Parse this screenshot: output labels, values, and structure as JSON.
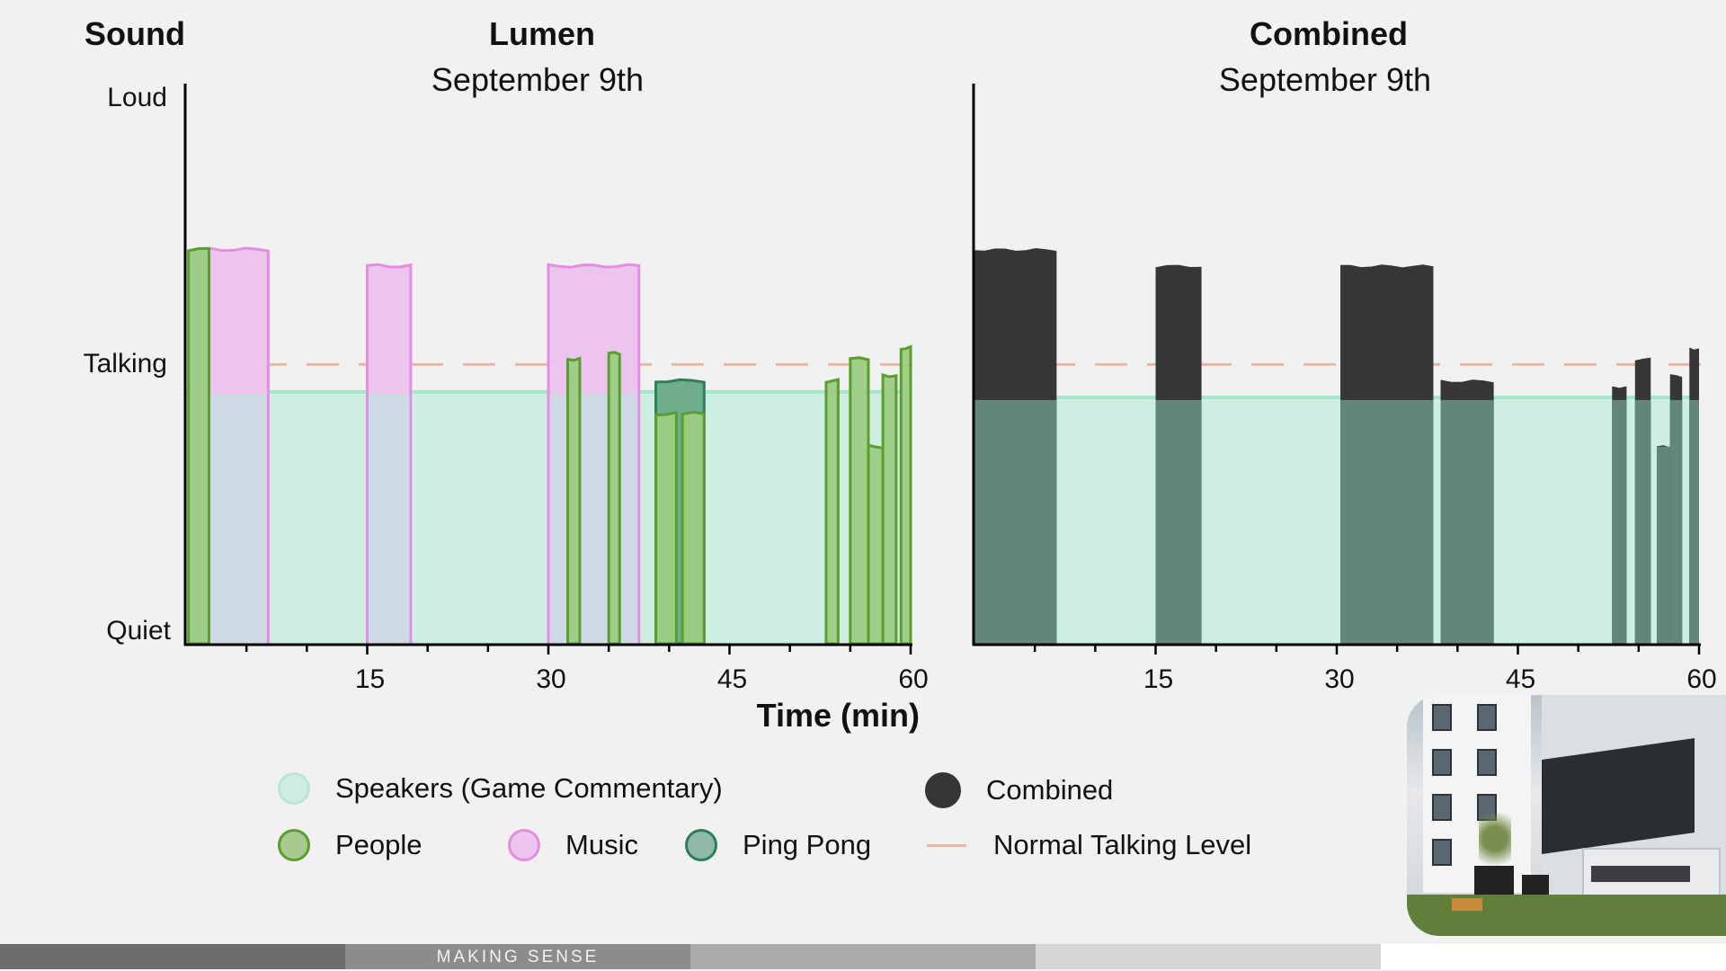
{
  "y_axis_title": "Sound",
  "y_labels": {
    "loud": "Loud",
    "talking": "Talking",
    "quiet": "Quiet"
  },
  "x_axis_title": "Time (min)",
  "panels": [
    {
      "title": "Lumen",
      "subtitle": "September 9th"
    },
    {
      "title": "Combined",
      "subtitle": "September 9th"
    }
  ],
  "legend": {
    "speakers": "Speakers (Game Commentary)",
    "combined": "Combined",
    "people": "People",
    "music": "Music",
    "ping_pong": "Ping Pong",
    "normal_talking": "Normal Talking Level"
  },
  "colors": {
    "speakers_fill": "#cfeee2",
    "speakers_line": "#a6e6cc",
    "people_fill": "#9ccc84",
    "people_line": "#5a9e2f",
    "music_fill": "#ecc4ee",
    "music_line": "#e38ee0",
    "overlap_fill": "#cfd9e6",
    "ping_fill": "#6fae8c",
    "ping_line": "#2e7d5b",
    "combined_dark": "#363636",
    "combined_under": "#62867a",
    "talking_line": "#e7b7a5"
  },
  "footer_label": "MAKING SENSE",
  "chart_data": [
    {
      "type": "area",
      "title": "Lumen",
      "subtitle": "September 9th",
      "xlabel": "Time (min)",
      "ylabel": "Sound",
      "xlim": [
        0,
        60
      ],
      "ylim": [
        0,
        100
      ],
      "x_ticks": [
        15,
        30,
        45,
        60
      ],
      "y_tick_labels": [
        {
          "label": "Quiet",
          "y": 0
        },
        {
          "label": "Talking",
          "y": 51
        },
        {
          "label": "Loud",
          "y": 100
        }
      ],
      "normal_talking_level": 51,
      "series": [
        {
          "name": "Speakers (Game Commentary)",
          "segments": [
            {
              "start": 0,
              "end": 60,
              "level": 46
            }
          ]
        },
        {
          "name": "Music",
          "segments": [
            {
              "start": 0.2,
              "end": 6.8,
              "level": 72
            },
            {
              "start": 15.0,
              "end": 18.6,
              "level": 69
            },
            {
              "start": 30.0,
              "end": 37.5,
              "level": 69
            }
          ]
        },
        {
          "name": "People",
          "segments": [
            {
              "start": 0.2,
              "end": 1.9,
              "level": 72
            },
            {
              "start": 31.6,
              "end": 32.6,
              "level": 52
            },
            {
              "start": 35.0,
              "end": 35.9,
              "level": 53
            },
            {
              "start": 38.9,
              "end": 40.6,
              "level": 42
            },
            {
              "start": 41.1,
              "end": 42.9,
              "level": 42
            },
            {
              "start": 53.0,
              "end": 54.0,
              "level": 48
            },
            {
              "start": 55.0,
              "end": 56.5,
              "level": 52
            },
            {
              "start": 56.5,
              "end": 57.7,
              "level": 36
            },
            {
              "start": 57.7,
              "end": 58.8,
              "level": 49
            },
            {
              "start": 59.2,
              "end": 60.0,
              "level": 54
            }
          ]
        },
        {
          "name": "Ping Pong",
          "segments": [
            {
              "start": 38.9,
              "end": 42.9,
              "level": 48
            }
          ]
        }
      ]
    },
    {
      "type": "area",
      "title": "Combined",
      "subtitle": "September 9th",
      "xlim": [
        0,
        60
      ],
      "ylim": [
        0,
        100
      ],
      "x_ticks": [
        15,
        30,
        45,
        60
      ],
      "normal_talking_level": 51,
      "series": [
        {
          "name": "Speakers (Game Commentary)",
          "segments": [
            {
              "start": 0,
              "end": 60,
              "level": 45
            }
          ]
        },
        {
          "name": "Combined",
          "segments": [
            {
              "start": 0.0,
              "end": 6.8,
              "level": 72
            },
            {
              "start": 15.0,
              "end": 18.8,
              "level": 69
            },
            {
              "start": 30.3,
              "end": 38.0,
              "level": 69
            },
            {
              "start": 38.6,
              "end": 43.0,
              "level": 48
            },
            {
              "start": 52.8,
              "end": 54.0,
              "level": 47
            },
            {
              "start": 54.7,
              "end": 56.0,
              "level": 52
            },
            {
              "start": 56.5,
              "end": 57.6,
              "level": 36
            },
            {
              "start": 57.6,
              "end": 58.6,
              "level": 49
            },
            {
              "start": 59.2,
              "end": 60.0,
              "level": 54
            }
          ]
        }
      ]
    }
  ]
}
